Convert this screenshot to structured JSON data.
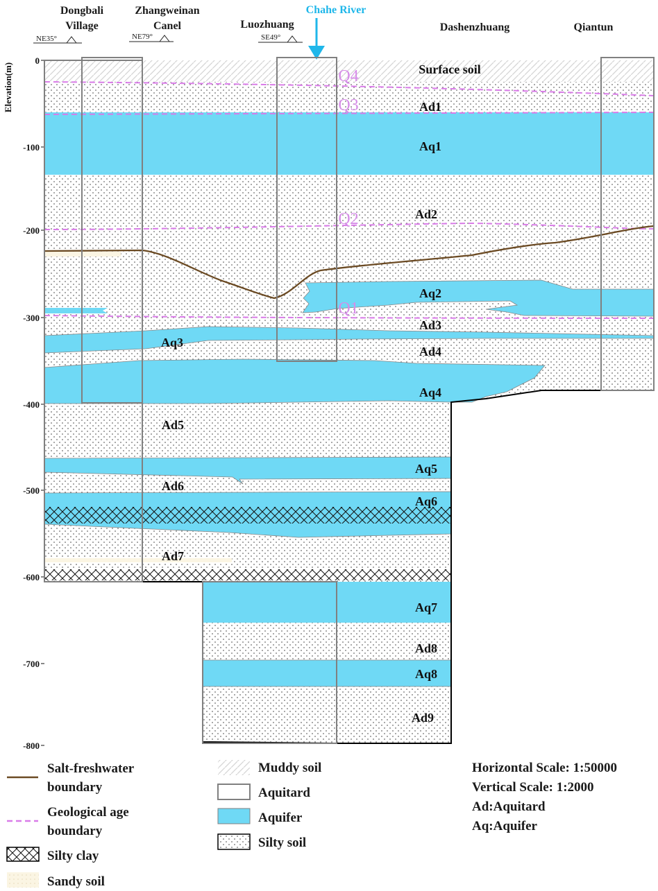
{
  "locations": {
    "dongbali_l1": "Dongbali",
    "dongbali_l2": "Village",
    "zhangweinan_l1": "Zhangweinan",
    "zhangweinan_l2": "Canel",
    "luozhuang": "Luozhuang",
    "chahe": "Chahe River",
    "dashenzhuang": "Dashenzhuang",
    "qiantun": "Qiantun"
  },
  "dips": {
    "d1": "NE35°",
    "d2": "NE79°",
    "d3": "SE49°"
  },
  "axis": {
    "label": "Elevation(m)",
    "ticks": [
      "0",
      "-100",
      "-200",
      "-300",
      "-400",
      "-500",
      "-600",
      "-700",
      "-800"
    ]
  },
  "layers": {
    "surface": "Surface soil",
    "ad1": "Ad1",
    "aq1": "Aq1",
    "ad2": "Ad2",
    "aq2": "Aq2",
    "ad3": "Ad3",
    "aq3": "Aq3",
    "ad4": "Ad4",
    "aq4": "Aq4",
    "ad5": "Ad5",
    "aq5": "Aq5",
    "ad6": "Ad6",
    "aq6": "Aq6",
    "ad7": "Ad7",
    "aq7": "Aq7",
    "ad8": "Ad8",
    "aq8": "Aq8",
    "ad9": "Ad9"
  },
  "ages": {
    "q4": "Q4",
    "q3": "Q3",
    "q2": "Q2",
    "q1": "Q1"
  },
  "legend": {
    "salt_l1": "Salt-freshwater",
    "salt_l2": "boundary",
    "geo_l1": "Geological age",
    "geo_l2": "boundary",
    "silty_clay": "Silty clay",
    "sandy_soil": "Sandy soil",
    "muddy_soil": "Muddy soil",
    "aquitard": "Aquitard",
    "aquifer": "Aquifer",
    "silty_soil": "Silty soil",
    "h_scale": "Horizontal Scale: 1:50000",
    "v_scale": "Vertical Scale: 1:2000",
    "ad_def": "Ad:Aquitard",
    "aq_def": "Aq:Aquifer"
  },
  "colors": {
    "aquifer": "#6fd9f5",
    "salt_boundary": "#6b4a23",
    "age_boundary": "#d97be8",
    "river_arrow": "#1fb7ea",
    "sandy": "#fbf5e3",
    "frame": "#000000"
  }
}
